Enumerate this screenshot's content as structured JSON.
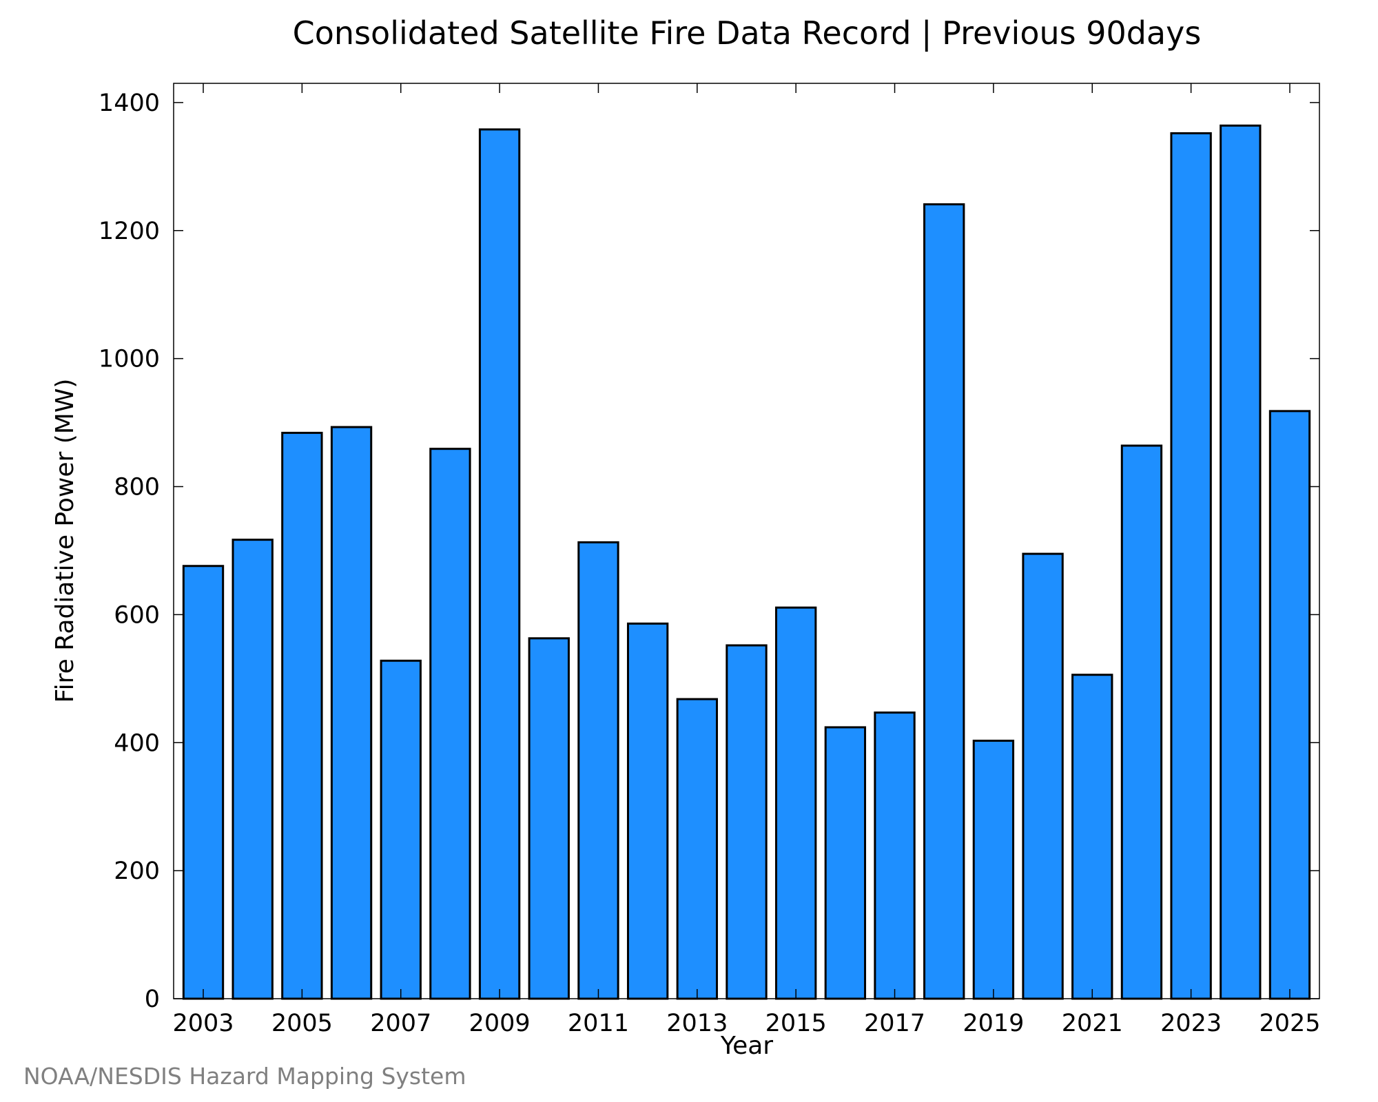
{
  "chart_data": {
    "type": "bar",
    "title": "Consolidated Satellite Fire Data Record | Previous 90days",
    "xlabel": "Year",
    "ylabel": "Fire Radiative Power (MW)",
    "ylim": [
      0,
      1430
    ],
    "yticks": [
      0,
      200,
      400,
      600,
      800,
      1000,
      1200,
      1400
    ],
    "xticks": [
      2003,
      2005,
      2007,
      2009,
      2011,
      2013,
      2015,
      2017,
      2019,
      2021,
      2023,
      2025
    ],
    "xlim": [
      2002.4,
      2025.6
    ],
    "grid": false,
    "legend": "none",
    "bar_color": "#1e8fff",
    "categories": [
      2003,
      2004,
      2005,
      2006,
      2007,
      2008,
      2009,
      2010,
      2011,
      2012,
      2013,
      2014,
      2015,
      2016,
      2017,
      2018,
      2019,
      2020,
      2021,
      2022,
      2023,
      2024,
      2025
    ],
    "values": [
      676,
      717,
      884,
      893,
      528,
      859,
      1358,
      563,
      713,
      586,
      468,
      552,
      611,
      424,
      447,
      1241,
      403,
      695,
      506,
      864,
      1352,
      1364,
      918
    ]
  },
  "credit": "NOAA/NESDIS Hazard Mapping System"
}
